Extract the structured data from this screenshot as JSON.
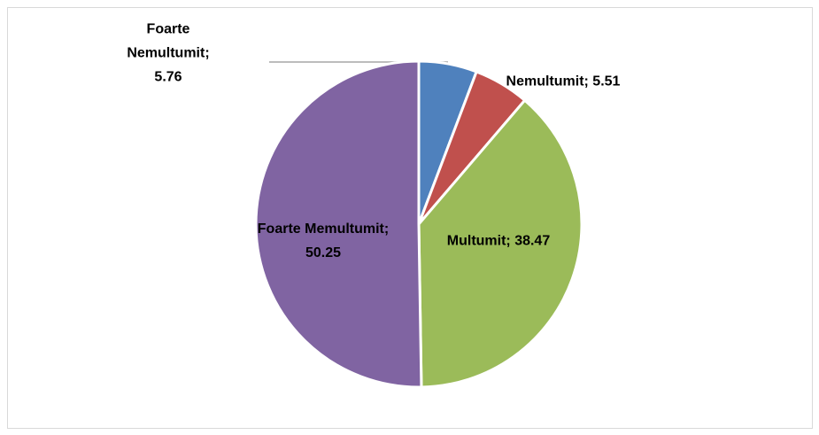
{
  "chart_data": {
    "type": "pie",
    "values": [
      5.76,
      5.51,
      38.47,
      50.25
    ],
    "value_labels": [
      "Foarte Nemultumit; 5.76",
      "Nemultumit; 5.51",
      "Multumit; 38.47",
      "Foarte Memultumit; 50.25"
    ],
    "colors": [
      "#4f81bd",
      "#c0504d",
      "#9bbb59",
      "#8064a2"
    ]
  }
}
